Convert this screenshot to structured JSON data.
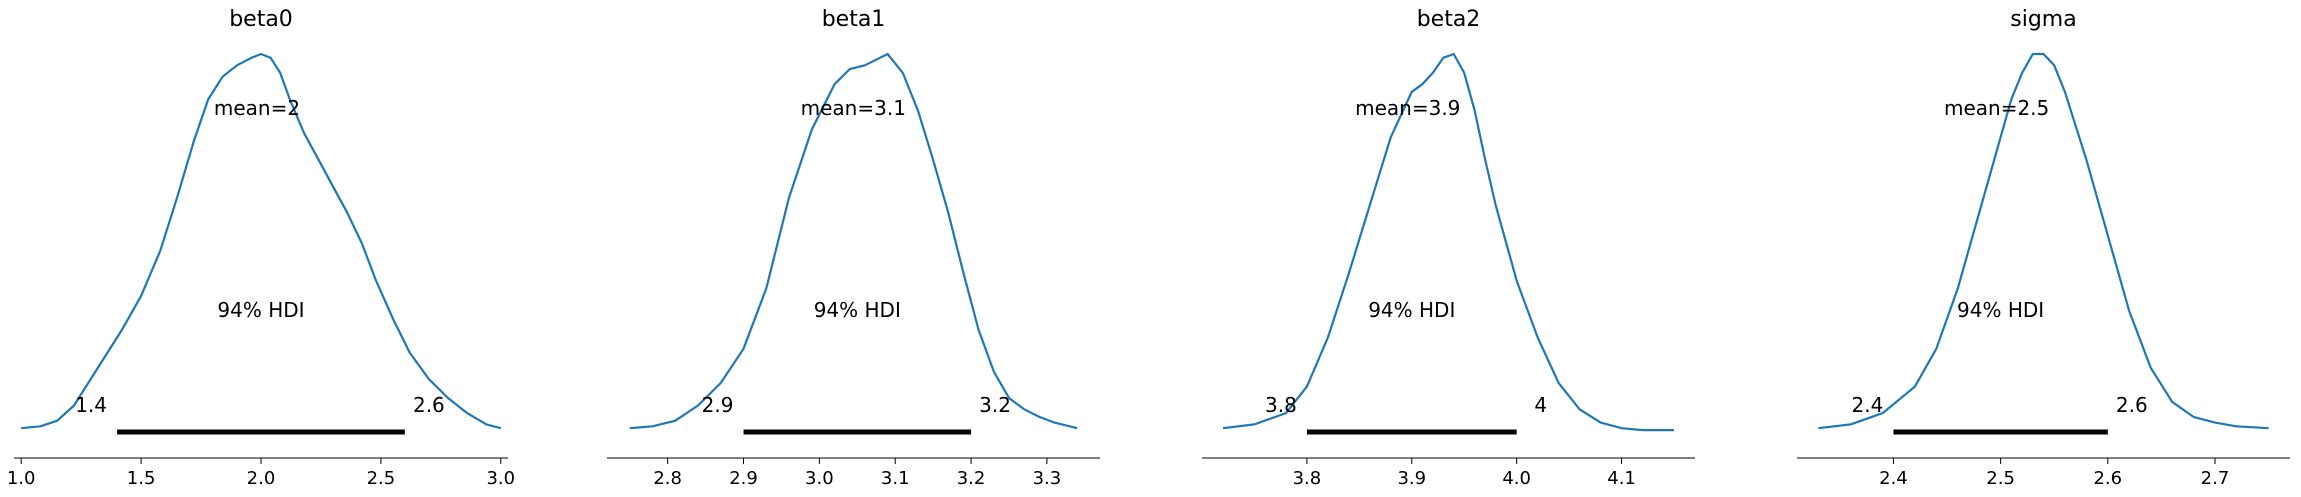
{
  "chart_data": [
    {
      "type": "line",
      "title": "beta0",
      "mean_label": "mean=2",
      "hdi_label": "94% HDI",
      "hdi": [
        1.4,
        2.6
      ],
      "hdi_low_label": "1.4",
      "hdi_high_label": "2.6",
      "xlim": [
        0.97,
        3.03
      ],
      "xticks": [
        1.0,
        1.5,
        2.0,
        2.5,
        3.0
      ],
      "xtick_labels": [
        "1.0",
        "1.5",
        "2.0",
        "2.5",
        "3.0"
      ],
      "density": {
        "x": [
          1.0,
          1.08,
          1.15,
          1.22,
          1.28,
          1.35,
          1.42,
          1.5,
          1.58,
          1.65,
          1.72,
          1.78,
          1.84,
          1.9,
          1.96,
          2.0,
          2.04,
          2.08,
          2.12,
          2.18,
          2.24,
          2.3,
          2.36,
          2.42,
          2.48,
          2.55,
          2.62,
          2.7,
          2.78,
          2.86,
          2.94,
          3.0
        ],
        "y": [
          0.01,
          0.015,
          0.03,
          0.07,
          0.13,
          0.2,
          0.27,
          0.36,
          0.48,
          0.62,
          0.77,
          0.88,
          0.94,
          0.97,
          0.99,
          1.0,
          0.99,
          0.95,
          0.88,
          0.79,
          0.72,
          0.65,
          0.58,
          0.5,
          0.4,
          0.3,
          0.21,
          0.14,
          0.09,
          0.05,
          0.02,
          0.01
        ]
      }
    },
    {
      "type": "line",
      "title": "beta1",
      "mean_label": "mean=3.1",
      "hdi_label": "94% HDI",
      "hdi": [
        2.9,
        3.2
      ],
      "hdi_low_label": "2.9",
      "hdi_high_label": "3.2",
      "xlim": [
        2.72,
        3.37
      ],
      "xticks": [
        2.8,
        2.9,
        3.0,
        3.1,
        3.2,
        3.3
      ],
      "xtick_labels": [
        "2.8",
        "2.9",
        "3.0",
        "3.1",
        "3.2",
        "3.3"
      ],
      "density": {
        "x": [
          2.75,
          2.78,
          2.81,
          2.84,
          2.87,
          2.9,
          2.93,
          2.96,
          2.99,
          3.02,
          3.04,
          3.06,
          3.08,
          3.09,
          3.11,
          3.13,
          3.15,
          3.17,
          3.19,
          3.21,
          3.23,
          3.25,
          3.27,
          3.29,
          3.31,
          3.34
        ],
        "y": [
          0.01,
          0.015,
          0.03,
          0.07,
          0.13,
          0.22,
          0.38,
          0.62,
          0.8,
          0.92,
          0.96,
          0.97,
          0.99,
          1.0,
          0.95,
          0.85,
          0.72,
          0.58,
          0.42,
          0.27,
          0.16,
          0.09,
          0.06,
          0.04,
          0.025,
          0.01
        ]
      }
    },
    {
      "type": "line",
      "title": "beta2",
      "mean_label": "mean=3.9",
      "hdi_label": "94% HDI",
      "hdi": [
        3.8,
        4.0
      ],
      "hdi_low_label": "3.8",
      "hdi_high_label": "4",
      "xlim": [
        3.7,
        4.17
      ],
      "xticks": [
        3.8,
        3.9,
        4.0,
        4.1
      ],
      "xtick_labels": [
        "3.8",
        "3.9",
        "4.0",
        "4.1"
      ],
      "density": {
        "x": [
          3.72,
          3.75,
          3.78,
          3.8,
          3.82,
          3.84,
          3.86,
          3.88,
          3.9,
          3.91,
          3.92,
          3.93,
          3.94,
          3.95,
          3.96,
          3.97,
          3.98,
          4.0,
          4.02,
          4.04,
          4.06,
          4.08,
          4.1,
          4.12,
          4.15
        ],
        "y": [
          0.01,
          0.02,
          0.05,
          0.12,
          0.25,
          0.42,
          0.6,
          0.78,
          0.9,
          0.92,
          0.95,
          0.99,
          1.0,
          0.95,
          0.85,
          0.72,
          0.6,
          0.4,
          0.25,
          0.13,
          0.06,
          0.025,
          0.01,
          0.005,
          0.005
        ]
      }
    },
    {
      "type": "line",
      "title": "sigma",
      "mean_label": "mean=2.5",
      "hdi_label": "94% HDI",
      "hdi": [
        2.4,
        2.6
      ],
      "hdi_low_label": "2.4",
      "hdi_high_label": "2.6",
      "xlim": [
        2.31,
        2.77
      ],
      "xticks": [
        2.4,
        2.5,
        2.6,
        2.7
      ],
      "xtick_labels": [
        "2.4",
        "2.5",
        "2.6",
        "2.7"
      ],
      "density": {
        "x": [
          2.33,
          2.36,
          2.39,
          2.42,
          2.44,
          2.46,
          2.48,
          2.5,
          2.51,
          2.52,
          2.53,
          2.54,
          2.55,
          2.56,
          2.58,
          2.6,
          2.62,
          2.64,
          2.66,
          2.68,
          2.7,
          2.72,
          2.75
        ],
        "y": [
          0.01,
          0.02,
          0.05,
          0.12,
          0.22,
          0.38,
          0.58,
          0.78,
          0.88,
          0.95,
          1.0,
          1.0,
          0.97,
          0.9,
          0.72,
          0.52,
          0.32,
          0.17,
          0.08,
          0.04,
          0.025,
          0.015,
          0.01
        ]
      }
    }
  ]
}
